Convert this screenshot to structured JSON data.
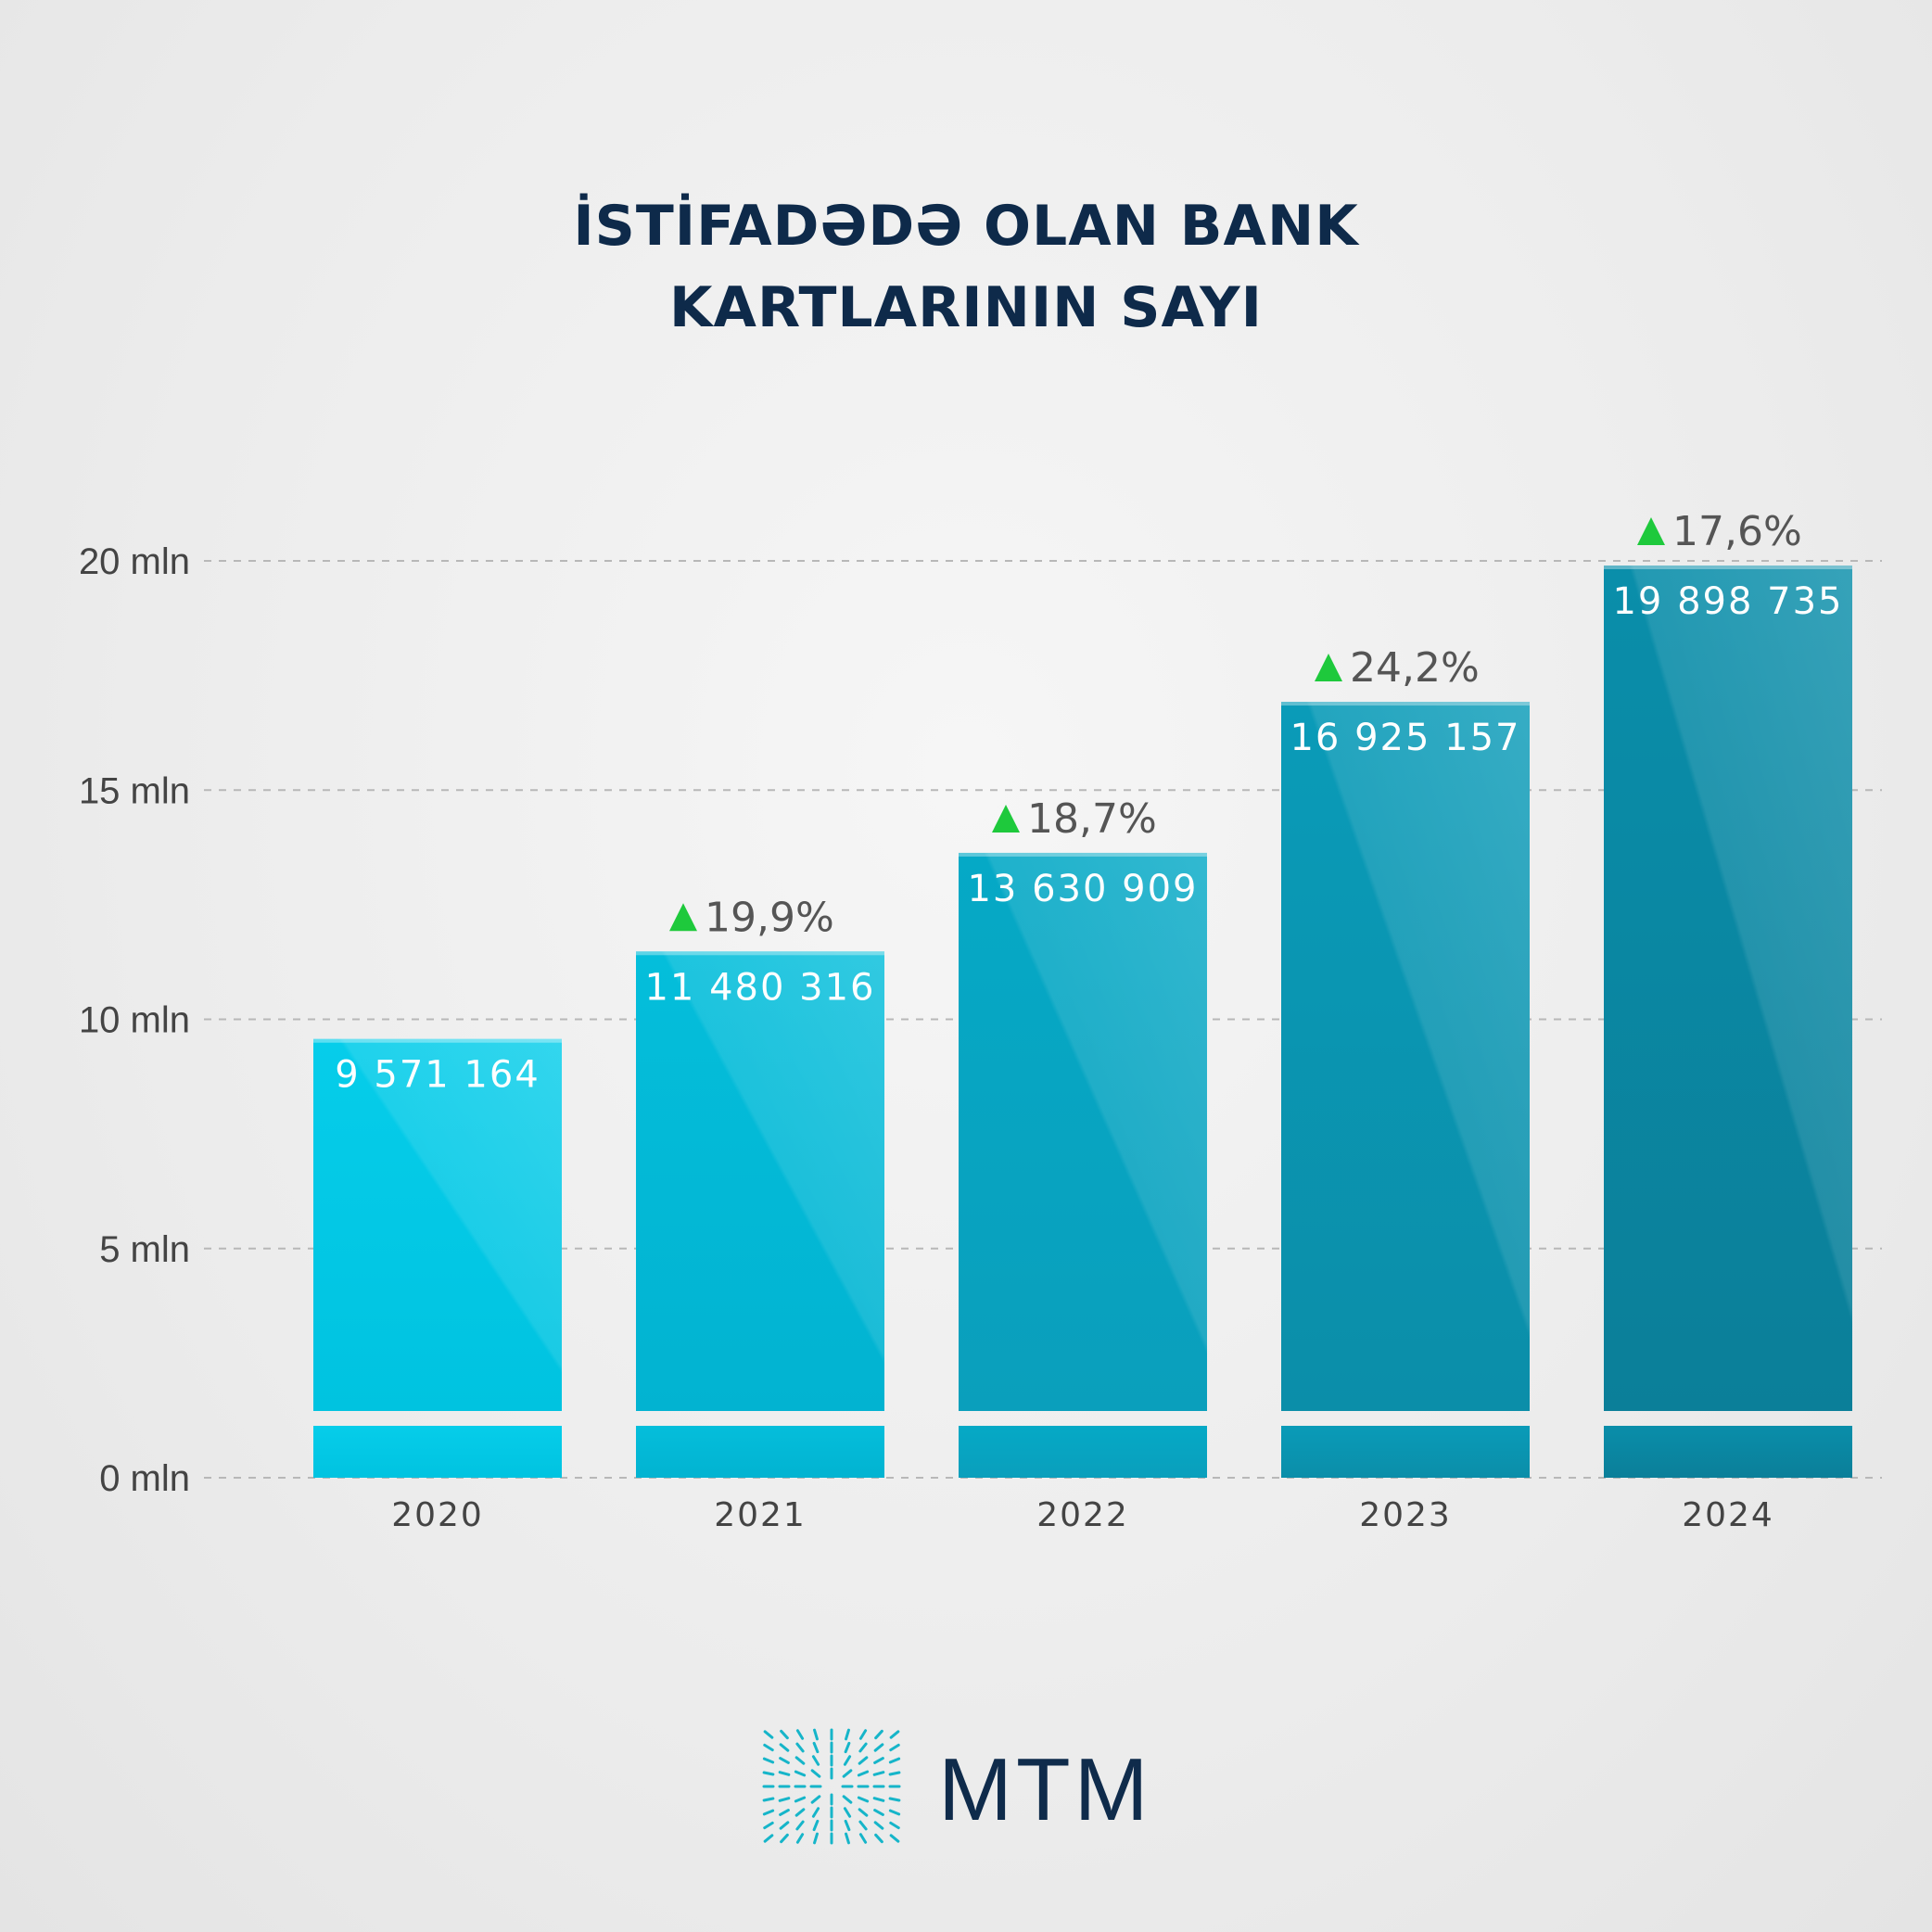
{
  "title_lines": [
    "İSTİFADƏDƏ OLAN BANK",
    "KARTLARININ SAYI"
  ],
  "chart_data": {
    "type": "bar",
    "title": "İSTİFADƏDƏ OLAN BANK KARTLARININ SAYI",
    "xlabel": "",
    "ylabel": "",
    "categories": [
      "2020",
      "2021",
      "2022",
      "2023",
      "2024"
    ],
    "values": [
      9571164,
      11480316,
      13630909,
      16925157,
      19898735
    ],
    "value_labels": [
      "9 571 164",
      "11 480 316",
      "13 630 909",
      "16 925 157",
      "19 898 735"
    ],
    "growth_labels": [
      "",
      "19,9%",
      "18,7%",
      "24,2%",
      "17,6%"
    ],
    "ylim": [
      0,
      20000000
    ],
    "y_ticks": [
      0,
      5000000,
      10000000,
      15000000,
      20000000
    ],
    "y_tick_labels": [
      "0 mln",
      "5 mln",
      "10 mln",
      "15 mln",
      "20 mln"
    ],
    "grid": true,
    "legend": "none"
  },
  "colors": {
    "title": "#0e2a4a",
    "bar_light": "#00cbe8",
    "bar_dark": "#0a8fa8",
    "growth_arrow": "#1ec93c",
    "growth_text": "#555555",
    "axis_text": "#444444",
    "grid": "#b8b8b8"
  },
  "logo": {
    "text": "MTM"
  }
}
